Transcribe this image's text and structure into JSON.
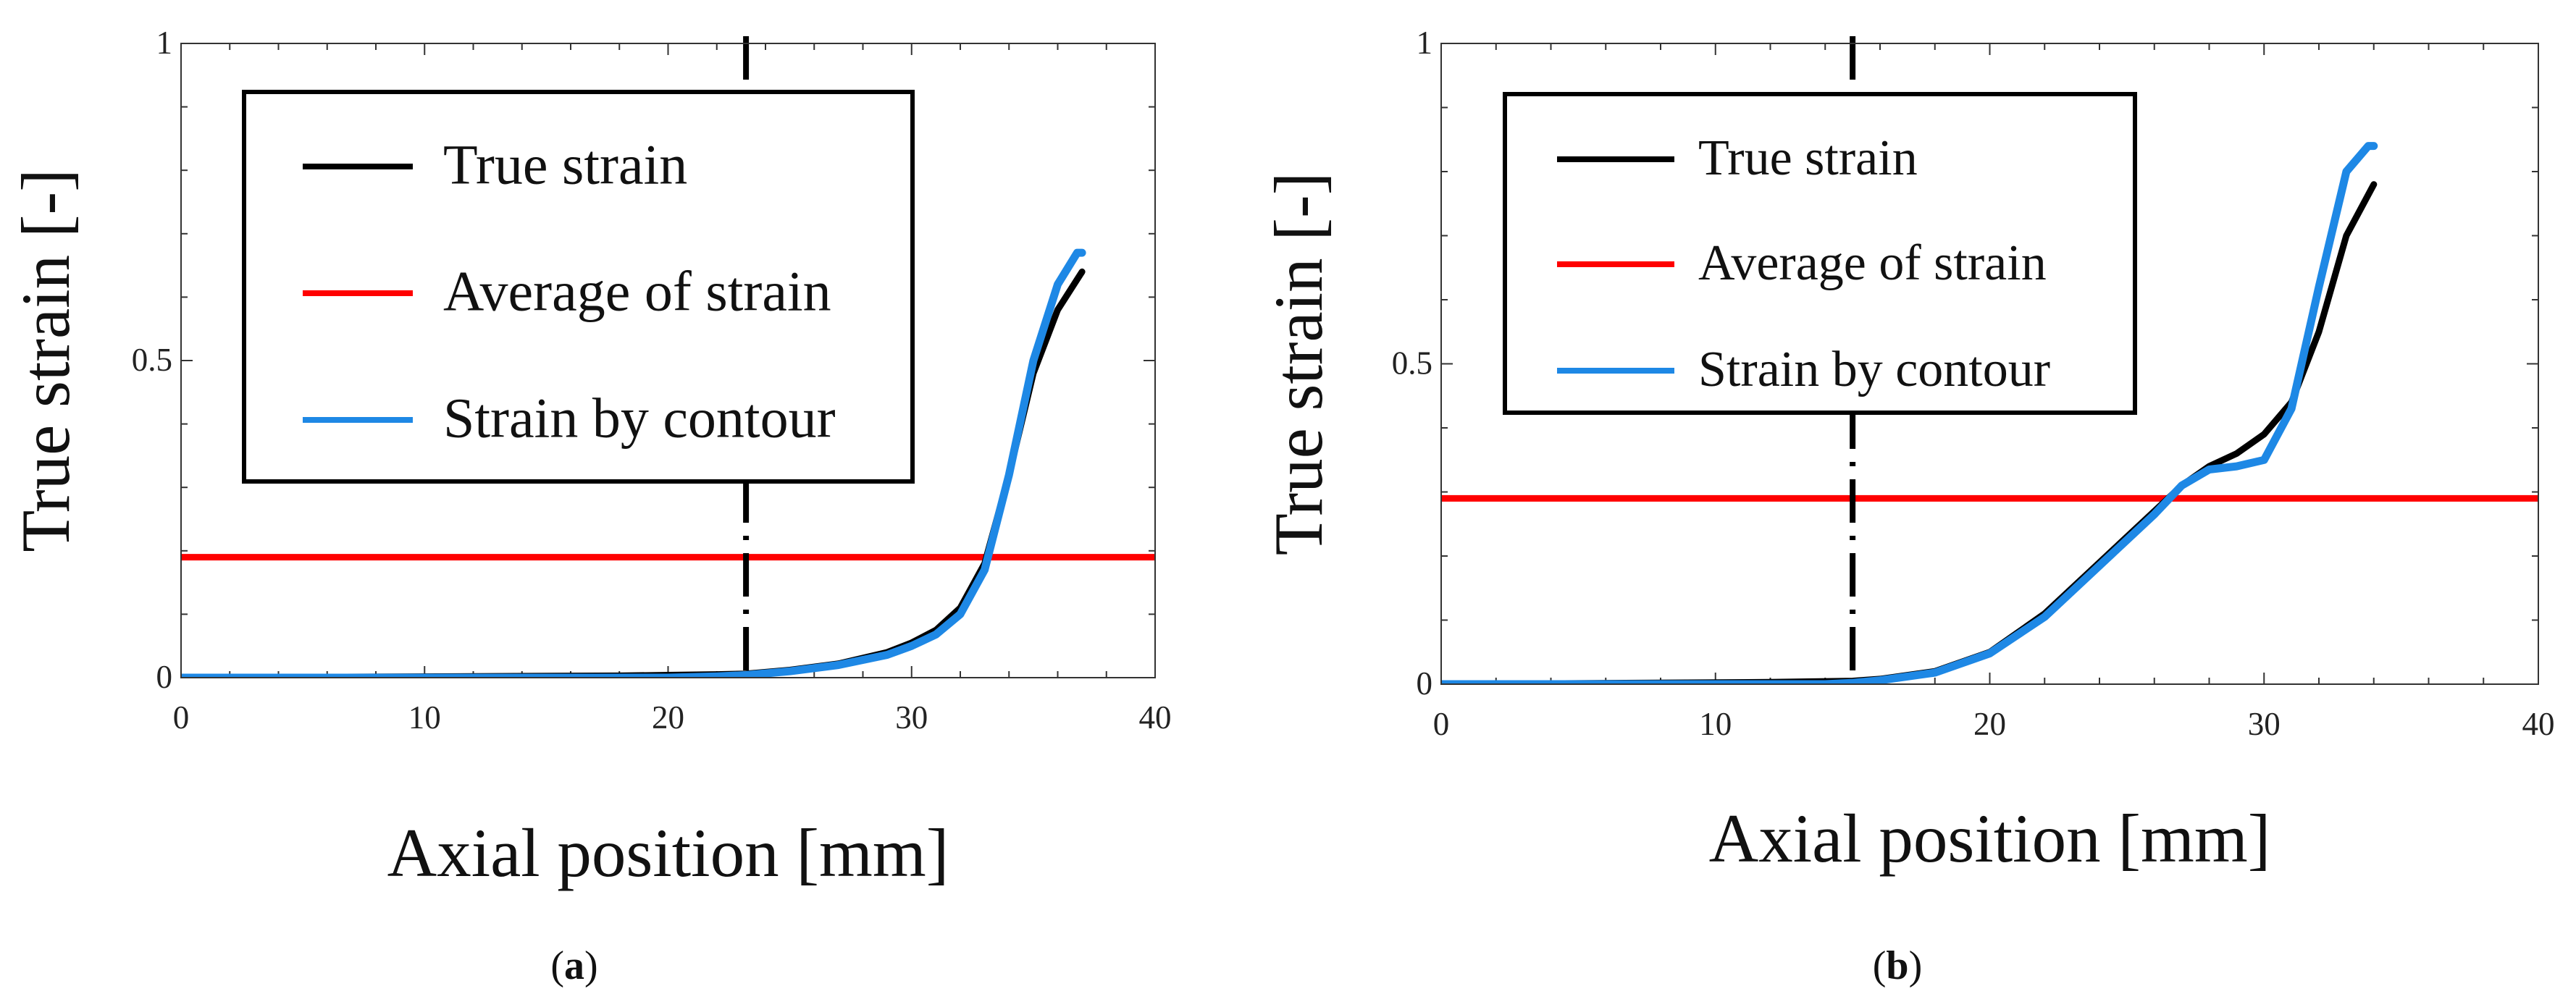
{
  "chart_data": [
    {
      "type": "line",
      "panel_label": "(a)",
      "panel_letter": "a",
      "xlabel": "Axial position [mm]",
      "ylabel": "True strain [-]",
      "xlim": [
        0,
        40
      ],
      "ylim": [
        0,
        1
      ],
      "xticks": [
        0,
        10,
        20,
        30,
        40
      ],
      "xtick_labels": [
        "0",
        "10",
        "20",
        "30",
        "40"
      ],
      "yticks": [
        0,
        0.5,
        1
      ],
      "ytick_labels": [
        "0",
        "0.5",
        "1"
      ],
      "legend_position": "top-left",
      "vertical_dashed_line_x": 23.2,
      "series": [
        {
          "name": "True strain",
          "color": "#000000",
          "x": [
            0,
            18,
            20,
            22,
            23.2,
            25,
            27,
            29,
            30,
            31,
            32,
            33,
            34,
            35,
            36,
            37
          ],
          "y": [
            0,
            0.003,
            0.004,
            0.005,
            0.006,
            0.012,
            0.022,
            0.04,
            0.055,
            0.075,
            0.11,
            0.18,
            0.32,
            0.48,
            0.58,
            0.64
          ]
        },
        {
          "name": "Average of strain",
          "color": "#ff0000",
          "x": [
            0,
            40
          ],
          "y": [
            0.19,
            0.19
          ]
        },
        {
          "name": "Strain by contour",
          "color": "#1e88e5",
          "x": [
            0,
            20,
            22,
            23.2,
            25,
            27,
            29,
            30,
            31,
            32,
            33,
            34,
            35,
            36,
            36.8,
            37
          ],
          "y": [
            0,
            0,
            0.002,
            0.004,
            0.01,
            0.02,
            0.036,
            0.05,
            0.068,
            0.1,
            0.17,
            0.32,
            0.5,
            0.62,
            0.67,
            0.67
          ]
        }
      ]
    },
    {
      "type": "line",
      "panel_label": "(b)",
      "panel_letter": "b",
      "xlabel": "Axial position [mm]",
      "ylabel": "True strain [-]",
      "xlim": [
        0,
        40
      ],
      "ylim": [
        0,
        1
      ],
      "xticks": [
        0,
        10,
        20,
        30,
        40
      ],
      "xtick_labels": [
        "0",
        "10",
        "20",
        "30",
        "40"
      ],
      "yticks": [
        0,
        0.5,
        1
      ],
      "ytick_labels": [
        "0",
        "0.5",
        "1"
      ],
      "legend_position": "top-left",
      "vertical_dashed_line_x": 15,
      "series": [
        {
          "name": "True strain",
          "color": "#000000",
          "x": [
            0,
            12,
            15,
            16,
            18,
            20,
            22,
            24,
            26,
            27,
            28,
            29,
            30,
            31,
            32,
            33,
            34
          ],
          "y": [
            0,
            0.003,
            0.005,
            0.008,
            0.02,
            0.05,
            0.11,
            0.19,
            0.27,
            0.31,
            0.34,
            0.36,
            0.39,
            0.44,
            0.55,
            0.7,
            0.78
          ]
        },
        {
          "name": "Average of strain",
          "color": "#ff0000",
          "x": [
            0,
            40
          ],
          "y": [
            0.29,
            0.29
          ]
        },
        {
          "name": "Strain by contour",
          "color": "#1e88e5",
          "x": [
            0,
            14,
            15,
            16,
            18,
            20,
            22,
            24,
            26,
            27,
            28,
            29,
            30,
            31,
            32,
            33,
            33.8,
            34
          ],
          "y": [
            0,
            0,
            0.002,
            0.006,
            0.018,
            0.048,
            0.105,
            0.185,
            0.265,
            0.31,
            0.335,
            0.34,
            0.35,
            0.43,
            0.62,
            0.8,
            0.84,
            0.84
          ]
        }
      ]
    }
  ],
  "colors": {
    "true_strain": "#000000",
    "average": "#ff0000",
    "contour": "#1e88e5",
    "axis": "#333333"
  }
}
